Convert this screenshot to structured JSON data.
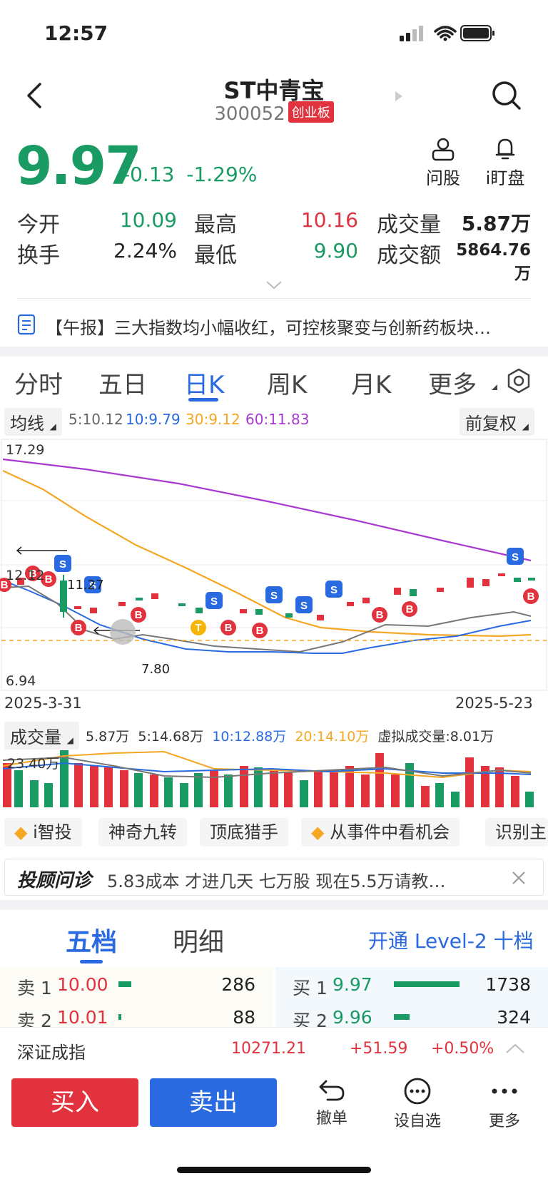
{
  "status_bar": {
    "time": "12:57"
  },
  "header": {
    "title": "ST中青宝",
    "code": "300052",
    "board": "创业板",
    "actions": [
      {
        "label": "问股",
        "icon": "person-icon"
      },
      {
        "label": "i盯盘",
        "icon": "bell-icon"
      }
    ]
  },
  "quote": {
    "price": "9.97",
    "change": "-0.13",
    "change_pct": "-1.29%",
    "stats": [
      {
        "label": "今开",
        "value": "10.09",
        "color": "#1a9b63"
      },
      {
        "label": "最高",
        "value": "10.16",
        "color": "#e2323d"
      },
      {
        "label": "成交量",
        "value": "5.87万",
        "color": "#222222"
      },
      {
        "label": "换手",
        "value": "2.24%",
        "color": "#222222"
      },
      {
        "label": "最低",
        "value": "9.90",
        "color": "#1a9b63"
      },
      {
        "label": "成交额",
        "value": "5864.76万",
        "color": "#222222"
      }
    ]
  },
  "news": {
    "text": "【午报】三大指数均小幅收红，可控核聚变与创新药板块…"
  },
  "kline_tabs": [
    "分时",
    "五日",
    "日K",
    "周K",
    "月K",
    "更多"
  ],
  "active_tab": "日K",
  "ma_bar": {
    "selector": "均线",
    "ma5": "5:10.12",
    "ma10": "10:9.79",
    "ma30": "30:9.12",
    "ma60": "60:11.83",
    "adjust": "前复权"
  },
  "chart_data": {
    "type": "candlestick",
    "x_start": "2025-3-31",
    "x_end": "2025-5-23",
    "y_top_label": "17.29",
    "y_mid_label": "12.12",
    "y_bottom_label": "6.94",
    "annotations": [
      "11.27",
      "7.80"
    ],
    "volume": {
      "selector": "成交量",
      "current": "5.87万",
      "ma5": "5:14.68万",
      "ma10": "10:12.88万",
      "ma20": "20:14.10万",
      "virtual": "虚拟成交量:8.01万",
      "y_top_label": "23.40万"
    }
  },
  "tool_chips": [
    "i智投",
    "神奇九转",
    "顶底猎手",
    "从事件中看机会",
    "识别主"
  ],
  "advisor": {
    "brand": "投顾问诊",
    "text": "5.83成本 才进几天 七万股 现在5.5万请教…"
  },
  "orderbook": {
    "tabs": [
      "五档",
      "明细"
    ],
    "level2": "开通 Level-2 十档",
    "sells": [
      {
        "label": "卖 1",
        "price": "10.00",
        "vol": "286"
      },
      {
        "label": "卖 2",
        "price": "10.01",
        "vol": "88"
      }
    ],
    "buys": [
      {
        "label": "买 1",
        "price": "9.97",
        "vol": "1738"
      },
      {
        "label": "买 2",
        "price": "9.96",
        "vol": "324"
      }
    ]
  },
  "index_bar": {
    "name": "深证成指",
    "value": "10271.21",
    "change": "+51.59",
    "pct": "+0.50%"
  },
  "bottom_bar": {
    "buy": "买入",
    "sell": "卖出",
    "actions": [
      {
        "label": "撤单",
        "icon": "undo-icon"
      },
      {
        "label": "设自选",
        "icon": "dots-circle-icon"
      },
      {
        "label": "更多",
        "icon": "more-icon"
      }
    ]
  }
}
